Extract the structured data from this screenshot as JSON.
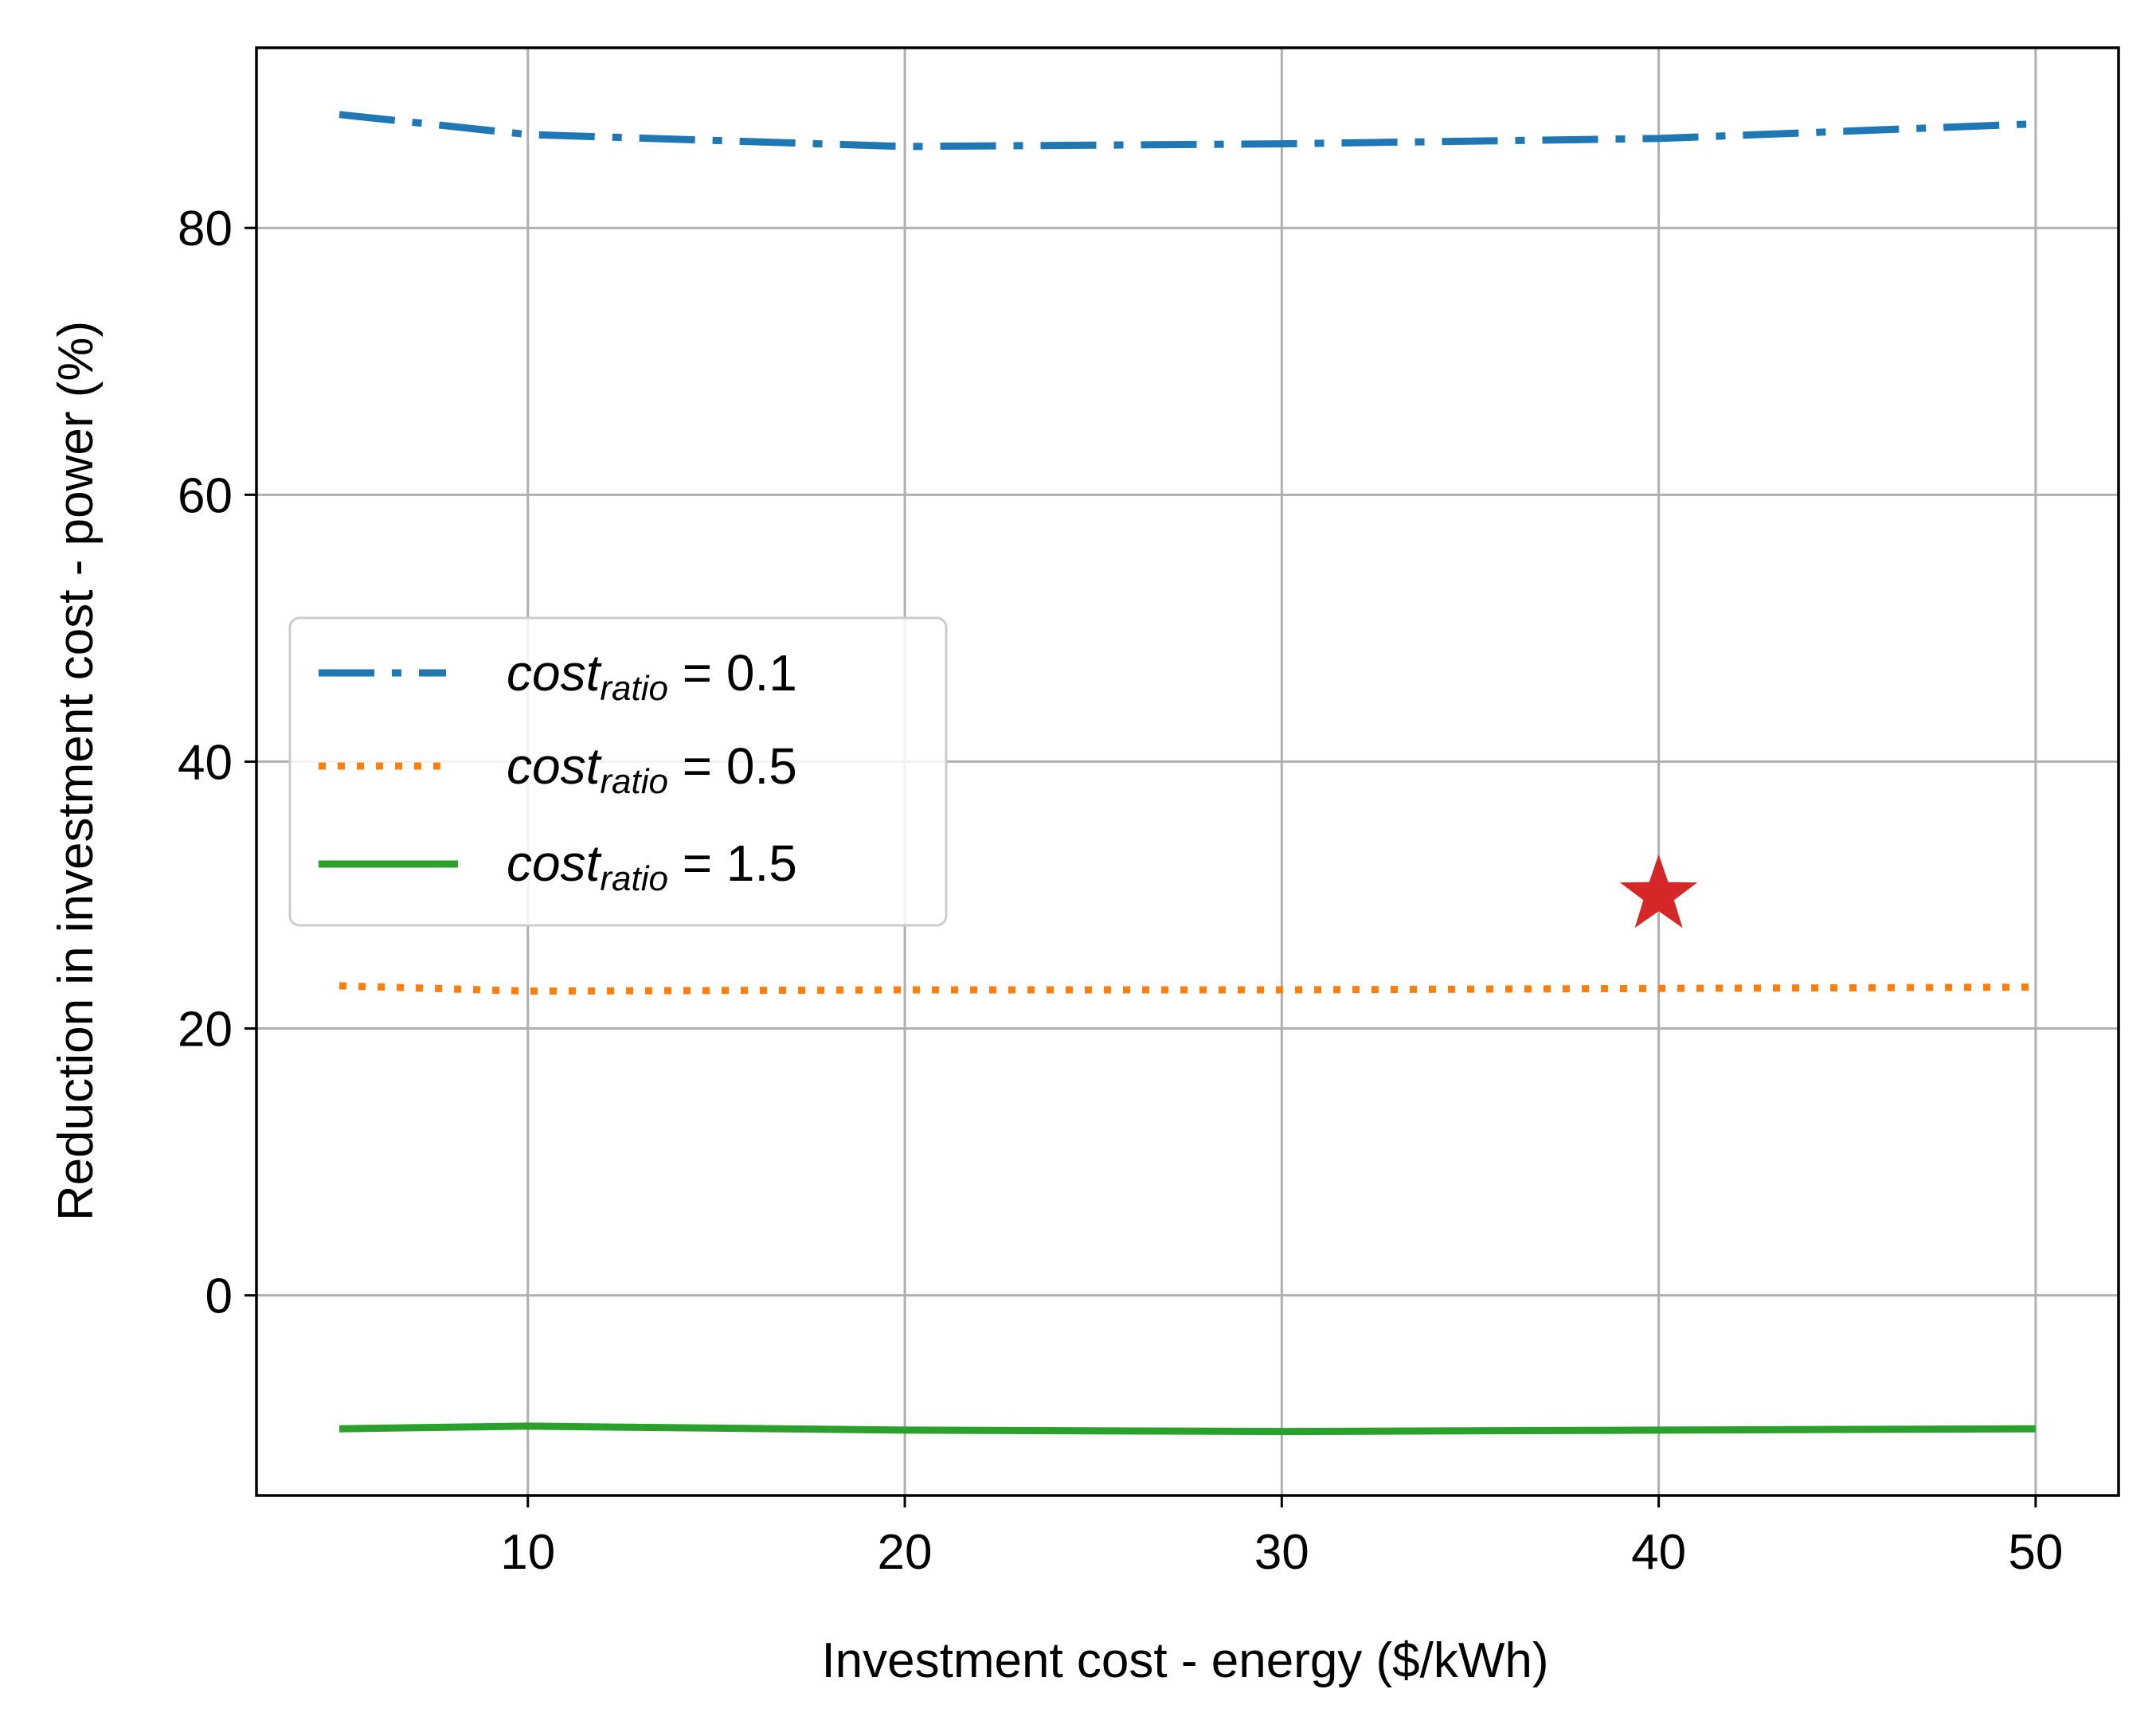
{
  "chart_data": {
    "type": "line",
    "xlabel": "Investment cost - energy ($/kWh)",
    "ylabel": "Reduction in investment cost - power (%)",
    "xlim": [
      2.8,
      52.2
    ],
    "ylim": [
      -15,
      93.5
    ],
    "xticks": [
      10,
      20,
      30,
      40,
      50
    ],
    "yticks": [
      0,
      20,
      40,
      60,
      80
    ],
    "grid": true,
    "legend_position": "center-left",
    "x": [
      5,
      10,
      20,
      30,
      40,
      50
    ],
    "series": [
      {
        "name_main": "cost",
        "name_sub": "ratio",
        "name_value": " = 0.1",
        "color": "#1f77b4",
        "linestyle": "dashdot",
        "values": [
          88.5,
          87.0,
          86.1,
          86.3,
          86.7,
          87.8
        ]
      },
      {
        "name_main": "cost",
        "name_sub": "ratio",
        "name_value": " = 0.5",
        "color": "#ff7f0e",
        "linestyle": "dotted",
        "values": [
          23.2,
          22.8,
          22.9,
          22.9,
          23.0,
          23.1
        ]
      },
      {
        "name_main": "cost",
        "name_sub": "ratio",
        "name_value": " = 1.5",
        "color": "#2ca02c",
        "linestyle": "solid",
        "values": [
          -10.0,
          -9.8,
          -10.1,
          -10.2,
          -10.1,
          -10.0
        ]
      }
    ],
    "marker": {
      "x": 40,
      "y": 30,
      "shape": "star",
      "color": "#d62728"
    }
  }
}
